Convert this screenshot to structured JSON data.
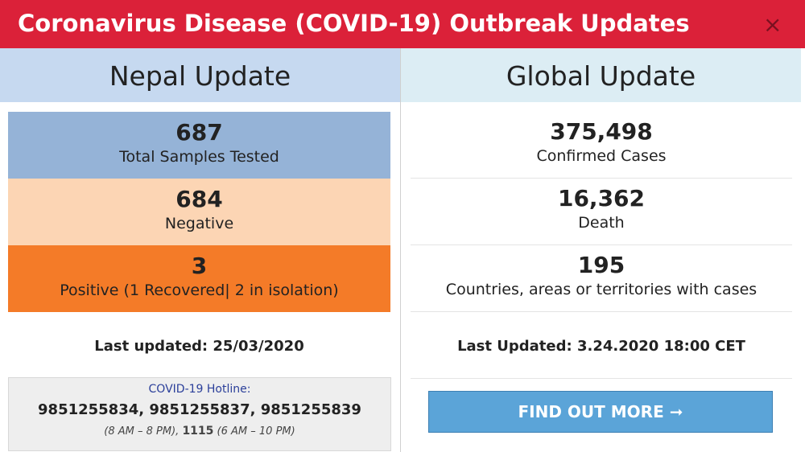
{
  "header": {
    "title": "Coronavirus Disease (COVID-19) Outbreak Updates",
    "close": "×"
  },
  "nepal": {
    "heading": "Nepal Update",
    "stats": [
      {
        "number": "687",
        "label": "Total Samples Tested"
      },
      {
        "number": "684",
        "label": "Negative"
      },
      {
        "number": "3",
        "label": "Positive (1 Recovered| 2 in isolation)"
      }
    ],
    "last_updated": "Last updated: 25/03/2020",
    "hotline": {
      "label": "COVID-19 Hotline:",
      "numbers": "9851255834, 9851255837, 9851255839",
      "hours_1": "(8 AM – 8 PM),",
      "number_2": "1115",
      "hours_2": "(6 AM – 10 PM)"
    }
  },
  "global": {
    "heading": "Global Update",
    "stats": [
      {
        "number": "375,498",
        "label": "Confirmed Cases"
      },
      {
        "number": "16,362",
        "label": "Death"
      },
      {
        "number": "195",
        "label": "Countries, areas or territories with cases"
      }
    ],
    "last_updated": "Last Updated: 3.24.2020 18:00 CET",
    "button": "FIND OUT MORE ➞"
  }
}
